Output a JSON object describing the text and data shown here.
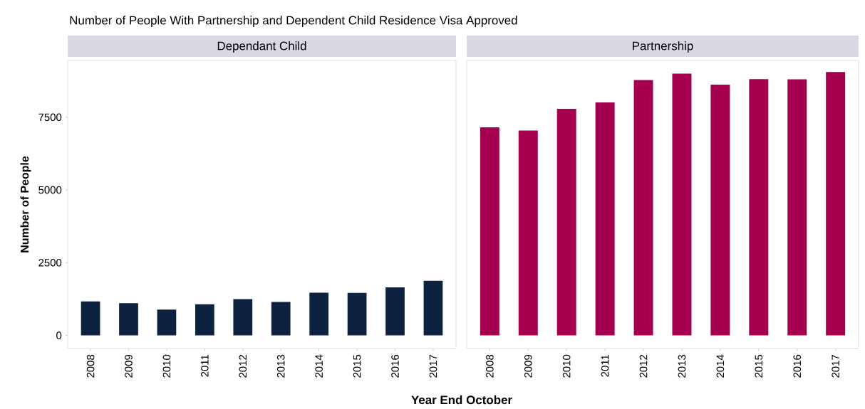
{
  "chart_data": [
    {
      "type": "bar",
      "title": "Number of People With Partnership and Dependent Child Residence Visa Approved",
      "subtitle": "Dependant Child",
      "xlabel": "Year End October",
      "ylabel": "Number of People",
      "categories": [
        "2008",
        "2009",
        "2010",
        "2011",
        "2012",
        "2013",
        "2014",
        "2015",
        "2016",
        "2017"
      ],
      "values": [
        1170,
        1110,
        890,
        1070,
        1250,
        1150,
        1470,
        1460,
        1650,
        1880
      ],
      "color": "#0d2240",
      "ylim": [
        -450,
        9450
      ],
      "yticks": [
        0,
        2500,
        5000,
        7500
      ]
    },
    {
      "type": "bar",
      "subtitle": "Partnership",
      "categories": [
        "2008",
        "2009",
        "2010",
        "2011",
        "2012",
        "2013",
        "2014",
        "2015",
        "2016",
        "2017"
      ],
      "values": [
        7150,
        7040,
        7790,
        8010,
        8780,
        9000,
        8620,
        8810,
        8800,
        9050
      ],
      "color": "#a50050",
      "ylim": [
        -450,
        9450
      ],
      "yticks": [
        0,
        2500,
        5000,
        7500
      ],
      "tick_labels": "x"
    }
  ]
}
